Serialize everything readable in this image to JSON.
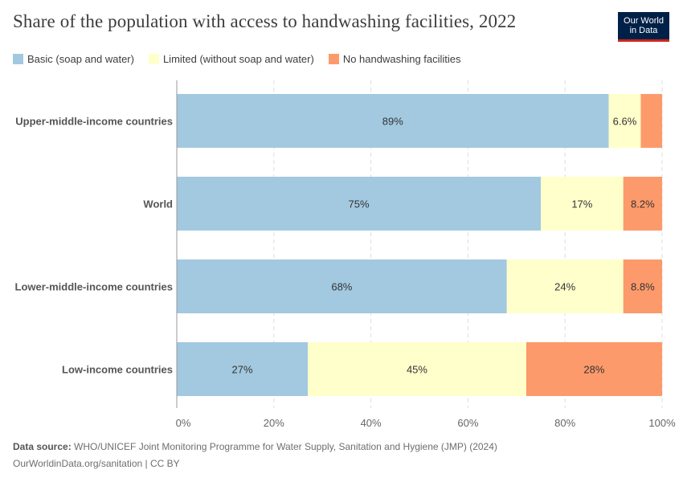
{
  "title": "Share of the population with access to handwashing facilities, 2022",
  "logo": {
    "line1": "Our World",
    "line2": "in Data"
  },
  "colors": {
    "basic": "#a2c9e0",
    "limited": "#ffffcc",
    "none": "#fd9a6b",
    "axis": "#666666",
    "grid": "#dddddd"
  },
  "footer": {
    "source_label": "Data source:",
    "source_text": "WHO/UNICEF Joint Monitoring Programme for Water Supply, Sanitation and Hygiene (JMP) (2024)",
    "license": "OurWorldinData.org/sanitation | CC BY"
  },
  "chart_data": {
    "type": "bar",
    "orientation": "horizontal",
    "stacked": true,
    "title": "Share of the population with access to handwashing facilities, 2022",
    "categories": [
      "Upper-middle-income countries",
      "World",
      "Lower-middle-income countries",
      "Low-income countries"
    ],
    "series": [
      {
        "name": "Basic (soap and water)",
        "color": "#a2c9e0",
        "values": [
          89,
          75,
          68,
          27
        ],
        "labels": [
          "89%",
          "75%",
          "68%",
          "27%"
        ]
      },
      {
        "name": "Limited (without soap and water)",
        "color": "#ffffcc",
        "values": [
          6.6,
          17,
          24,
          45
        ],
        "labels": [
          "6.6%",
          "17%",
          "24%",
          "45%"
        ]
      },
      {
        "name": "No handwashing facilities",
        "color": "#fd9a6b",
        "values": [
          4.4,
          8.2,
          8.8,
          28
        ],
        "labels": [
          "",
          "8.2%",
          "8.8%",
          "28%"
        ]
      }
    ],
    "xlim": [
      0,
      100
    ],
    "xticks": [
      "0%",
      "20%",
      "40%",
      "60%",
      "80%",
      "100%"
    ],
    "grid": "vertical dashed",
    "legend_position": "top-left"
  }
}
